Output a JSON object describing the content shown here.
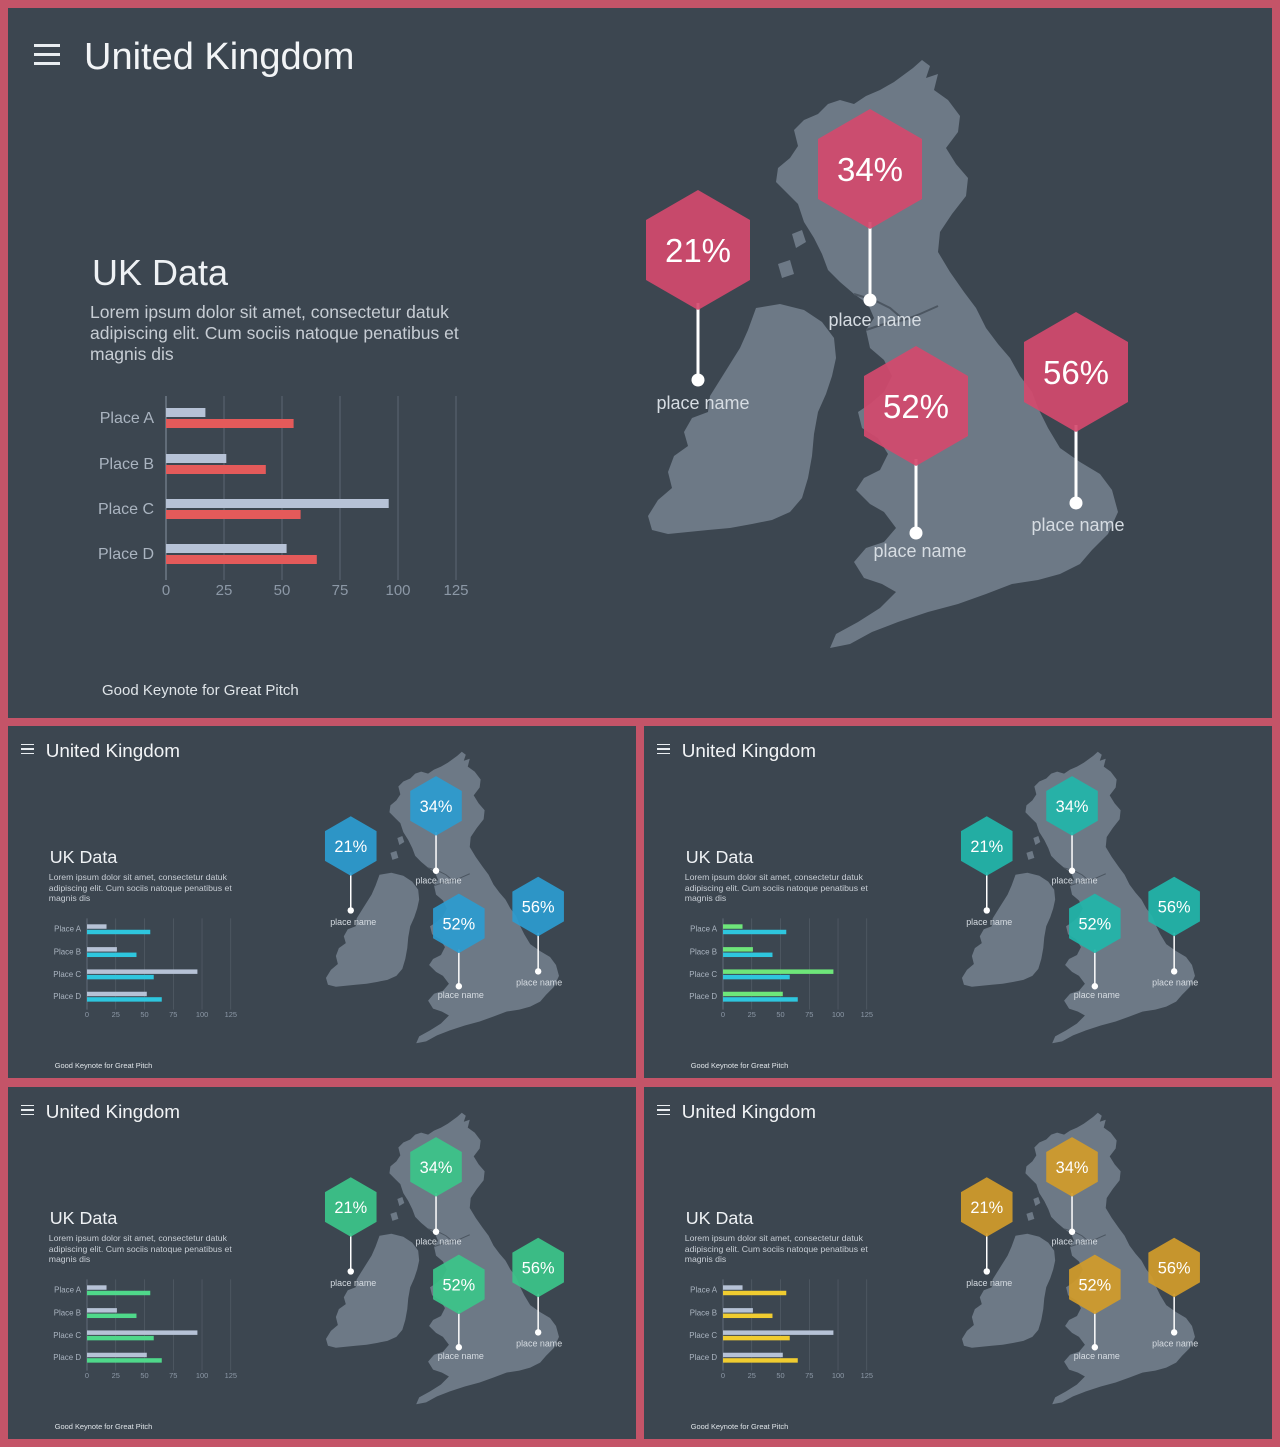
{
  "slides": [
    {
      "app_title": "United Kingdom",
      "section_title": "UK Data",
      "description": "Lorem ipsum dolor sit amet, consectetur datuk adipiscing elit. Cum sociis natoque penatibus et magnis dis",
      "footer": "Good Keynote for Great Pitch",
      "colors": {
        "series_a": "#b6c2d6",
        "series_b": "#e45a5a",
        "hex": "#d44a6e"
      },
      "chart_data": {
        "type": "bar",
        "orientation": "horizontal",
        "categories": [
          "Place A",
          "Place B",
          "Place C",
          "Place D"
        ],
        "series": [
          {
            "values": [
              17,
              26,
              96,
              52
            ]
          },
          {
            "values": [
              55,
              43,
              58,
              65
            ]
          }
        ],
        "xticks": [
          "0",
          "25",
          "50",
          "75",
          "100",
          "125"
        ],
        "xlim": [
          0,
          125
        ],
        "grid": true
      },
      "markers": [
        {
          "value": "21%",
          "label": "place name"
        },
        {
          "value": "34%",
          "label": "place name"
        },
        {
          "value": "52%",
          "label": "place name"
        },
        {
          "value": "56%",
          "label": "place name"
        }
      ]
    },
    {
      "app_title": "United Kingdom",
      "section_title": "UK Data",
      "description": "Lorem ipsum dolor sit amet, consectetur datuk adipiscing elit. Cum sociis natoque penatibus et magnis dis",
      "footer": "Good Keynote for Great Pitch",
      "colors": {
        "series_a": "#b6c2d6",
        "series_b": "#2ec6de",
        "hex": "#2c9cd0"
      },
      "chart_data": {
        "type": "bar",
        "orientation": "horizontal",
        "categories": [
          "Place A",
          "Place B",
          "Place C",
          "Place D"
        ],
        "series": [
          {
            "values": [
              17,
              26,
              96,
              52
            ]
          },
          {
            "values": [
              55,
              43,
              58,
              65
            ]
          }
        ],
        "xticks": [
          "0",
          "25",
          "50",
          "75",
          "100",
          "125"
        ],
        "xlim": [
          0,
          125
        ],
        "grid": true
      },
      "markers": [
        {
          "value": "21%",
          "label": "place name"
        },
        {
          "value": "34%",
          "label": "place name"
        },
        {
          "value": "52%",
          "label": "place name"
        },
        {
          "value": "56%",
          "label": "place name"
        }
      ]
    },
    {
      "app_title": "United Kingdom",
      "section_title": "UK Data",
      "description": "Lorem ipsum dolor sit amet, consectetur datuk adipiscing elit. Cum sociis natoque penatibus et magnis dis",
      "footer": "Good Keynote for Great Pitch",
      "colors": {
        "series_a": "#6ee67a",
        "series_b": "#2ec6de",
        "hex": "#22b6aa"
      },
      "chart_data": {
        "type": "bar",
        "orientation": "horizontal",
        "categories": [
          "Place A",
          "Place B",
          "Place C",
          "Place D"
        ],
        "series": [
          {
            "values": [
              17,
              26,
              96,
              52
            ]
          },
          {
            "values": [
              55,
              43,
              58,
              65
            ]
          }
        ],
        "xticks": [
          "0",
          "25",
          "50",
          "75",
          "100",
          "125"
        ],
        "xlim": [
          0,
          125
        ],
        "grid": true
      },
      "markers": [
        {
          "value": "21%",
          "label": "place name"
        },
        {
          "value": "34%",
          "label": "place name"
        },
        {
          "value": "52%",
          "label": "place name"
        },
        {
          "value": "56%",
          "label": "place name"
        }
      ]
    },
    {
      "app_title": "United Kingdom",
      "section_title": "UK Data",
      "description": "Lorem ipsum dolor sit amet, consectetur datuk adipiscing elit. Cum sociis natoque penatibus et magnis dis",
      "footer": "Good Keynote for Great Pitch",
      "colors": {
        "series_a": "#b6c2d6",
        "series_b": "#4fd88a",
        "hex": "#3cc68a"
      },
      "chart_data": {
        "type": "bar",
        "orientation": "horizontal",
        "categories": [
          "Place A",
          "Place B",
          "Place C",
          "Place D"
        ],
        "series": [
          {
            "values": [
              17,
              26,
              96,
              52
            ]
          },
          {
            "values": [
              55,
              43,
              58,
              65
            ]
          }
        ],
        "xticks": [
          "0",
          "25",
          "50",
          "75",
          "100",
          "125"
        ],
        "xlim": [
          0,
          125
        ],
        "grid": true
      },
      "markers": [
        {
          "value": "21%",
          "label": "place name"
        },
        {
          "value": "34%",
          "label": "place name"
        },
        {
          "value": "52%",
          "label": "place name"
        },
        {
          "value": "56%",
          "label": "place name"
        }
      ]
    },
    {
      "app_title": "United Kingdom",
      "section_title": "UK Data",
      "description": "Lorem ipsum dolor sit amet, consectetur datuk adipiscing elit. Cum sociis natoque penatibus et magnis dis",
      "footer": "Good Keynote for Great Pitch",
      "colors": {
        "series_a": "#b6c2d6",
        "series_b": "#f0cc30",
        "hex": "#d29c2a"
      },
      "chart_data": {
        "type": "bar",
        "orientation": "horizontal",
        "categories": [
          "Place A",
          "Place B",
          "Place C",
          "Place D"
        ],
        "series": [
          {
            "values": [
              17,
              26,
              96,
              52
            ]
          },
          {
            "values": [
              55,
              43,
              58,
              65
            ]
          }
        ],
        "xticks": [
          "0",
          "25",
          "50",
          "75",
          "100",
          "125"
        ],
        "xlim": [
          0,
          125
        ],
        "grid": true
      },
      "markers": [
        {
          "value": "21%",
          "label": "place name"
        },
        {
          "value": "34%",
          "label": "place name"
        },
        {
          "value": "52%",
          "label": "place name"
        },
        {
          "value": "56%",
          "label": "place name"
        }
      ]
    }
  ]
}
